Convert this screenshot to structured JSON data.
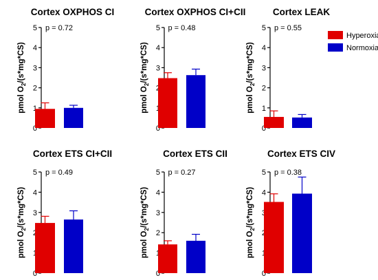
{
  "colors": {
    "hyperoxia": "#e00000",
    "normoxia": "#0000c8",
    "axis": "#000000"
  },
  "legend": {
    "position": "top-right",
    "items": [
      "Hyperoxia",
      "Normoxia"
    ]
  },
  "chart_data": [
    {
      "type": "bar",
      "title": "Cortex OXPHOS CI",
      "ylabel": "pmol O2/(s*mg*CS)",
      "ylabel_main": "pmol O",
      "ylabel_sub": "2",
      "ylabel_rest": "/(s*mg*CS)",
      "ylim": [
        0,
        5
      ],
      "yticks": [
        "0",
        "1",
        "2",
        "3",
        "4",
        "5"
      ],
      "p_value": "p = 0.72",
      "series": [
        {
          "name": "Hyperoxia",
          "value": 0.95,
          "error": 0.3
        },
        {
          "name": "Normoxia",
          "value": 1.0,
          "error": 0.13
        }
      ]
    },
    {
      "type": "bar",
      "title": "Cortex OXPHOS CI+CII",
      "ylabel": "pmol O2/(s*mg*CS)",
      "ylabel_main": "pmol O",
      "ylabel_sub": "2",
      "ylabel_rest": "/(s*mg*CS)",
      "ylim": [
        0,
        5
      ],
      "yticks": [
        "0",
        "1",
        "2",
        "3",
        "4",
        "5"
      ],
      "p_value": "p = 0.48",
      "series": [
        {
          "name": "Hyperoxia",
          "value": 2.48,
          "error": 0.27
        },
        {
          "name": "Normoxia",
          "value": 2.63,
          "error": 0.3
        }
      ]
    },
    {
      "type": "bar",
      "title": "Cortex LEAK",
      "ylabel": "pmol O2/(s*mg*CS)",
      "ylabel_main": "pmol O",
      "ylabel_sub": "2",
      "ylabel_rest": "/(s*mg*CS)",
      "ylim": [
        0,
        5
      ],
      "yticks": [
        "0",
        "1",
        "2",
        "3",
        "4",
        "5"
      ],
      "p_value": "p = 0.55",
      "series": [
        {
          "name": "Hyperoxia",
          "value": 0.55,
          "error": 0.3
        },
        {
          "name": "Normoxia",
          "value": 0.52,
          "error": 0.15
        }
      ]
    },
    {
      "type": "bar",
      "title": "Cortex ETS CI+CII",
      "ylabel": "pmol O2/(s*mg*CS)",
      "ylabel_main": "pmol O",
      "ylabel_sub": "2",
      "ylabel_rest": "/(s*mg*CS)",
      "ylim": [
        0,
        5
      ],
      "yticks": [
        "0",
        "1",
        "2",
        "3",
        "4",
        "5"
      ],
      "p_value": "p = 0.49",
      "series": [
        {
          "name": "Hyperoxia",
          "value": 2.48,
          "error": 0.33
        },
        {
          "name": "Normoxia",
          "value": 2.65,
          "error": 0.43
        }
      ]
    },
    {
      "type": "bar",
      "title": "Cortex ETS CII",
      "ylabel": "pmol O2/(s*mg*CS)",
      "ylabel_main": "pmol O",
      "ylabel_sub": "2",
      "ylabel_rest": "/(s*mg*CS)",
      "ylim": [
        0,
        5
      ],
      "yticks": [
        "0",
        "1",
        "2",
        "3",
        "4",
        "5"
      ],
      "p_value": "p = 0.27",
      "series": [
        {
          "name": "Hyperoxia",
          "value": 1.42,
          "error": 0.18
        },
        {
          "name": "Normoxia",
          "value": 1.6,
          "error": 0.32
        }
      ]
    },
    {
      "type": "bar",
      "title": "Cortex ETS CIV",
      "ylabel": "pmol O2/(s*mg*CS)",
      "ylabel_main": "pmol O",
      "ylabel_sub": "2",
      "ylabel_rest": "/(s*mg*CS)",
      "ylim": [
        0,
        5
      ],
      "yticks": [
        "0",
        "1",
        "2",
        "3",
        "4",
        "5"
      ],
      "p_value": "p = 0.38",
      "series": [
        {
          "name": "Hyperoxia",
          "value": 3.52,
          "error": 0.4
        },
        {
          "name": "Normoxia",
          "value": 3.93,
          "error": 0.82
        }
      ]
    }
  ]
}
